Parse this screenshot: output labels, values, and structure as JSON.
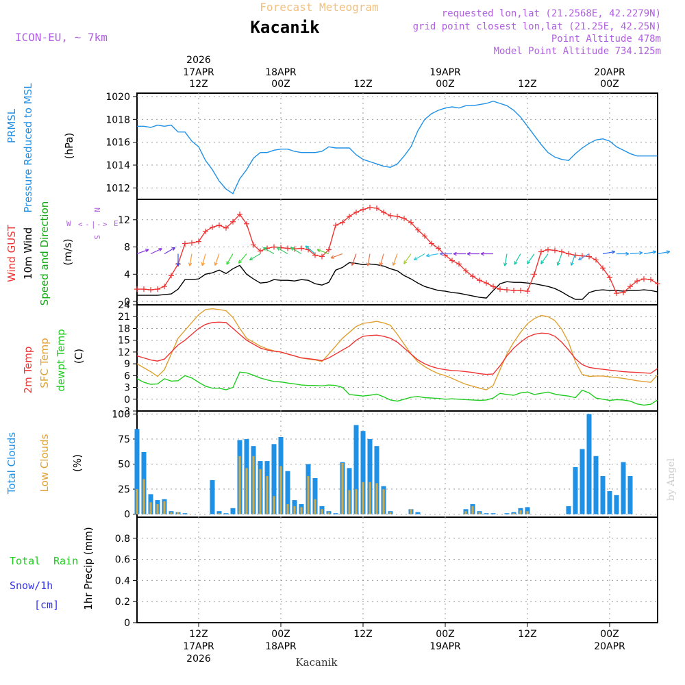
{
  "header": {
    "subtitle": "Forecast Meteogram",
    "title": "Kacanik",
    "model": "ICON-EU, ~ 7km",
    "requested": "requested lon,lat (21.2568E, 42.2279N)",
    "grid_point": "grid point closest lon,lat (21.25E, 42.25N)",
    "point_altitude": "Point Altitude 478m",
    "model_altitude": "Model Point Altitude 734.125m"
  },
  "top_time_labels": [
    {
      "line1": "2026",
      "line2": "17APR",
      "line3": "12Z"
    },
    {
      "line1": "",
      "line2": "18APR",
      "line3": "00Z"
    },
    {
      "line1": "",
      "line2": "",
      "line3": "12Z"
    },
    {
      "line1": "",
      "line2": "19APR",
      "line3": "00Z"
    },
    {
      "line1": "",
      "line2": "",
      "line3": "12Z"
    },
    {
      "line1": "",
      "line2": "20APR",
      "line3": "00Z"
    }
  ],
  "bottom_time_labels": [
    {
      "line1": "12Z",
      "line2": "17APR",
      "line3": "2026"
    },
    {
      "line1": "00Z",
      "line2": "18APR",
      "line3": ""
    },
    {
      "line1": "12Z",
      "line2": "",
      "line3": ""
    },
    {
      "line1": "00Z",
      "line2": "19APR",
      "line3": ""
    },
    {
      "line1": "12Z",
      "line2": "",
      "line3": ""
    },
    {
      "line1": "00Z",
      "line2": "20APR",
      "line3": ""
    }
  ],
  "footer": {
    "location": "Kacanik",
    "credit": "by Angel"
  },
  "colors": {
    "pressure": "#1e90e6",
    "gust": "#ee3333",
    "wind": "#000000",
    "wind_label": "#11aa11",
    "temp2m": "#ee3333",
    "sfc": "#e0a030",
    "dewpt": "#22cc22",
    "total_clouds": "#1e90e6",
    "low_clouds": "#d8a840",
    "rain": "#22cc22",
    "snow": "#3333ee",
    "header_purple": "#b060e0",
    "header_subtitle": "#f0c080"
  },
  "compass": {
    "n": "N",
    "s": "S",
    "e": "E",
    "w": "W"
  },
  "chart_data": [
    {
      "type": "line",
      "id": "pressure",
      "title": "PRMSL Pressure Reduced to MSL",
      "ylabel_lines": [
        "PRMSL",
        "Pressure Reduced to MSL"
      ],
      "unit": "(hPa)",
      "ylim": [
        1011,
        1020.3
      ],
      "yticks": [
        1012,
        1014,
        1016,
        1018,
        1020
      ],
      "x_hours": [
        0,
        1,
        2,
        3,
        4,
        5,
        6,
        7,
        8,
        9,
        10,
        11,
        12,
        13,
        14,
        15,
        16,
        17,
        18,
        19,
        20,
        21,
        22,
        23,
        24,
        25,
        26,
        27,
        28,
        29,
        30,
        31,
        32,
        33,
        34,
        35,
        36,
        37,
        38,
        39,
        40,
        41,
        42,
        43,
        44,
        45,
        46,
        47,
        48,
        49,
        50,
        51,
        52,
        53,
        54,
        55,
        56,
        57,
        58,
        59,
        60,
        61,
        62,
        63,
        64,
        65,
        66,
        67,
        68,
        69,
        70,
        71,
        72,
        73,
        74,
        75,
        76
      ],
      "series": [
        {
          "name": "PRMSL",
          "values": [
            1017.4,
            1017.4,
            1017.3,
            1017.5,
            1017.4,
            1017.5,
            1016.9,
            1016.9,
            1016.1,
            1015.6,
            1014.4,
            1013.6,
            1012.6,
            1011.9,
            1011.5,
            1012.8,
            1013.6,
            1014.6,
            1015.1,
            1015.1,
            1015.3,
            1015.4,
            1015.4,
            1015.2,
            1015.1,
            1015.1,
            1015.1,
            1015.2,
            1015.6,
            1015.5,
            1015.5,
            1015.5,
            1014.9,
            1014.5,
            1014.3,
            1014.1,
            1013.9,
            1013.8,
            1014.1,
            1014.8,
            1015.6,
            1017.0,
            1018.0,
            1018.5,
            1018.8,
            1019.0,
            1019.1,
            1019.0,
            1019.2,
            1019.2,
            1019.3,
            1019.4,
            1019.6,
            1019.4,
            1019.2,
            1018.8,
            1018.2,
            1017.4,
            1016.6,
            1015.8,
            1015.1,
            1014.7,
            1014.5,
            1014.4,
            1015.0,
            1015.5,
            1015.9,
            1016.2,
            1016.3,
            1016.1,
            1015.6,
            1015.3,
            1015.0,
            1014.8,
            1014.8,
            1014.8,
            1014.8
          ]
        }
      ]
    },
    {
      "type": "line",
      "id": "wind",
      "ylabel_lines": [
        "Wind GUST",
        "10m Wind",
        "Speed and Direction"
      ],
      "unit": "(m/s)",
      "ylim": [
        -0.5,
        15
      ],
      "yticks": [
        0,
        4,
        8,
        12
      ],
      "series": [
        {
          "name": "Wind GUST",
          "values": [
            1.8,
            1.8,
            1.7,
            1.8,
            2.2,
            3.8,
            5.5,
            8.5,
            8.6,
            8.8,
            10.3,
            10.9,
            11.2,
            10.8,
            11.7,
            12.8,
            11.4,
            8.3,
            7.4,
            7.8,
            8.0,
            7.9,
            7.8,
            7.7,
            7.8,
            7.6,
            6.8,
            6.6,
            7.6,
            11.2,
            11.6,
            12.5,
            13.1,
            13.5,
            13.8,
            13.7,
            13.1,
            12.6,
            12.5,
            12.2,
            11.6,
            10.5,
            9.6,
            8.5,
            7.8,
            6.8,
            6.0,
            5.5,
            4.5,
            3.7,
            3.1,
            2.7,
            2.2,
            1.8,
            1.7,
            1.6,
            1.6,
            1.5,
            4.0,
            7.3,
            7.6,
            7.5,
            7.3,
            7.0,
            6.8,
            6.7,
            6.6,
            6.1,
            4.9,
            3.5,
            1.2,
            1.3,
            2.2,
            3.0,
            3.3,
            3.2,
            2.6
          ]
        },
        {
          "name": "10m Wind",
          "values": [
            0.9,
            0.9,
            0.9,
            0.9,
            1.0,
            1.1,
            1.8,
            3.2,
            3.2,
            3.3,
            4.0,
            4.2,
            4.6,
            4.1,
            4.8,
            5.3,
            4.0,
            3.3,
            2.7,
            2.8,
            3.2,
            3.1,
            3.1,
            3.0,
            3.2,
            3.1,
            2.6,
            2.4,
            2.8,
            4.6,
            5.0,
            5.7,
            5.6,
            5.4,
            5.5,
            5.4,
            5.2,
            4.8,
            4.5,
            3.8,
            3.3,
            2.7,
            2.2,
            1.9,
            1.6,
            1.5,
            1.3,
            1.2,
            1.0,
            0.8,
            0.6,
            0.5,
            1.6,
            2.6,
            2.9,
            2.8,
            2.8,
            2.7,
            2.6,
            2.4,
            2.2,
            1.9,
            1.4,
            0.8,
            0.3,
            0.3,
            1.3,
            1.6,
            1.7,
            1.6,
            1.6,
            1.5,
            1.6,
            1.6,
            1.7,
            1.6,
            1.4
          ]
        }
      ],
      "arrow_hours": [
        0,
        2,
        4,
        6,
        8,
        10,
        12,
        14,
        16,
        18,
        20,
        22,
        24,
        26,
        28,
        30,
        32,
        34,
        36,
        38,
        40,
        42,
        44,
        46,
        48,
        50,
        52,
        54,
        56,
        58,
        60,
        62,
        64,
        66,
        68,
        70,
        72,
        74,
        76
      ],
      "arrow_dirs_deg": [
        70,
        65,
        60,
        180,
        190,
        195,
        200,
        210,
        220,
        240,
        300,
        300,
        300,
        310,
        290,
        250,
        200,
        190,
        195,
        200,
        215,
        240,
        260,
        270,
        270,
        270,
        270,
        190,
        210,
        215,
        215,
        200,
        200,
        240,
        80,
        90,
        85,
        80,
        80
      ],
      "arrow_colors": [
        "#8833dd",
        "#8833dd",
        "#6633dd",
        "#3355dd",
        "#ff9933",
        "#ff9933",
        "#ff9933",
        "#33dd33",
        "#33dd33",
        "#33cc66",
        "#33cc66",
        "#33cc66",
        "#33cc66",
        "#11cccc",
        "#55cc33",
        "#ee7744",
        "#ee5544",
        "#ee7744",
        "#ee7744",
        "#ee9944",
        "#aacc33",
        "#33cccc",
        "#33bbee",
        "#6677ee",
        "#8833dd",
        "#8833dd",
        "#8833dd",
        "#11ccaa",
        "#11ccaa",
        "#11ccaa",
        "#11ccaa",
        "#11ccaa",
        "#11bbcc",
        "#4499ee",
        "#3366ee",
        "#2299ee",
        "#2299ee",
        "#2299ee",
        "#2299ee"
      ]
    },
    {
      "type": "line",
      "id": "temperature",
      "ylabel_lines": [
        "2m Temp",
        "SFC Temp",
        "dewpt Temp"
      ],
      "unit": "(C)",
      "ylim": [
        -3,
        24
      ],
      "yticks": [
        -3,
        0,
        3,
        6,
        9,
        12,
        15,
        18,
        21,
        24
      ],
      "series": [
        {
          "name": "2m Temp",
          "values": [
            11.0,
            10.5,
            10.0,
            9.7,
            10.2,
            12.0,
            13.8,
            15.0,
            16.5,
            18.0,
            19.0,
            19.5,
            19.6,
            19.5,
            18.0,
            16.5,
            15.0,
            14.0,
            13.0,
            12.5,
            12.2,
            12.0,
            11.5,
            11.0,
            10.5,
            10.3,
            10.1,
            9.8,
            10.5,
            11.5,
            12.5,
            13.5,
            15.0,
            16.0,
            16.2,
            16.3,
            16.0,
            15.5,
            14.5,
            13.0,
            11.5,
            10.0,
            9.0,
            8.3,
            7.8,
            7.5,
            7.3,
            7.2,
            7.0,
            6.8,
            6.5,
            6.3,
            6.4,
            8.5,
            11.0,
            13.0,
            14.5,
            15.8,
            16.5,
            16.8,
            16.7,
            16.0,
            14.5,
            12.5,
            10.3,
            8.8,
            8.1,
            7.8,
            7.6,
            7.4,
            7.2,
            7.0,
            6.9,
            6.8,
            6.7,
            6.6,
            7.8
          ]
        },
        {
          "name": "SFC Temp",
          "values": [
            9.0,
            8.0,
            7.0,
            5.8,
            7.5,
            11.5,
            15.5,
            17.5,
            19.5,
            21.5,
            22.8,
            23.0,
            22.8,
            22.5,
            20.8,
            18.0,
            15.5,
            14.5,
            13.5,
            12.8,
            12.3,
            12.0,
            11.5,
            11.0,
            10.5,
            10.2,
            10.0,
            9.6,
            11.5,
            13.5,
            15.5,
            17.0,
            18.5,
            19.3,
            19.5,
            19.8,
            19.4,
            18.8,
            16.5,
            14.0,
            11.5,
            9.5,
            8.3,
            7.3,
            6.5,
            6.0,
            5.3,
            4.5,
            3.8,
            3.3,
            2.8,
            2.4,
            3.5,
            7.5,
            11.5,
            14.5,
            17.0,
            19.2,
            20.5,
            21.3,
            21.0,
            20.0,
            17.8,
            14.5,
            9.5,
            6.3,
            5.8,
            5.9,
            5.9,
            5.7,
            5.5,
            5.3,
            5.0,
            4.7,
            4.5,
            4.3,
            6.2
          ]
        },
        {
          "name": "dewpt Temp",
          "values": [
            5.2,
            4.3,
            3.8,
            3.9,
            5.2,
            4.6,
            4.7,
            6.0,
            5.4,
            4.3,
            3.3,
            2.8,
            2.8,
            2.4,
            3.0,
            6.9,
            6.7,
            6.1,
            5.4,
            4.9,
            4.5,
            4.4,
            4.1,
            3.9,
            3.6,
            3.5,
            3.5,
            3.4,
            3.6,
            3.5,
            3.0,
            1.2,
            1.0,
            0.8,
            1.0,
            1.3,
            0.6,
            -0.2,
            -0.5,
            0.0,
            0.5,
            0.7,
            0.4,
            0.3,
            0.2,
            0.0,
            0.1,
            0.0,
            -0.1,
            -0.2,
            -0.3,
            -0.2,
            0.3,
            1.5,
            1.2,
            1.0,
            1.6,
            1.8,
            1.2,
            1.5,
            1.8,
            1.3,
            1.0,
            0.8,
            0.4,
            2.3,
            1.6,
            0.3,
            0.0,
            -0.3,
            -0.1,
            -0.2,
            -0.5,
            -1.2,
            -1.5,
            -1.3,
            -0.2
          ]
        }
      ]
    },
    {
      "type": "bar",
      "id": "clouds",
      "ylabel_lines": [
        "Total Clouds",
        "Low Clouds"
      ],
      "unit": "(%)",
      "ylim": [
        -3,
        103
      ],
      "yticks": [
        0,
        25,
        50,
        75,
        100
      ],
      "series": [
        {
          "name": "Total Clouds",
          "values": [
            85,
            62,
            20,
            14,
            15,
            3,
            2,
            1,
            0,
            0,
            0,
            34,
            3,
            1,
            6,
            74,
            75,
            68,
            53,
            53,
            70,
            77,
            43,
            14,
            10,
            50,
            36,
            8,
            3,
            1,
            52,
            46,
            89,
            83,
            75,
            68,
            28,
            3,
            0,
            0,
            5,
            2,
            0,
            0,
            0,
            0,
            0,
            0,
            5,
            10,
            3,
            1,
            1,
            0,
            1,
            2,
            6,
            7,
            0,
            0,
            0,
            0,
            0,
            8,
            47,
            65,
            100,
            58,
            38,
            23,
            19,
            52,
            38,
            0,
            0,
            0,
            0
          ]
        },
        {
          "name": "Low Clouds",
          "values": [
            25,
            35,
            12,
            10,
            13,
            2,
            2,
            0,
            0,
            0,
            0,
            0,
            1,
            0,
            0,
            58,
            46,
            58,
            45,
            38,
            18,
            48,
            10,
            8,
            7,
            38,
            15,
            5,
            2,
            0,
            51,
            24,
            25,
            32,
            32,
            31,
            25,
            2,
            0,
            0,
            5,
            0,
            0,
            0,
            0,
            0,
            0,
            0,
            3,
            8,
            2,
            0,
            0,
            0,
            0,
            1,
            4,
            3,
            0,
            0,
            0,
            0,
            0,
            0,
            0,
            0,
            0,
            0,
            0,
            0,
            0,
            0,
            0,
            0,
            0,
            0,
            0
          ]
        }
      ]
    },
    {
      "type": "line",
      "id": "precip",
      "ylabel_lines": [
        "1hr Precip (mm)"
      ],
      "side_labels": {
        "rain_total": "Total",
        "rain": "Rain",
        "snow": "Snow/1h",
        "snow_unit": "[cm]"
      },
      "ylim": [
        0,
        1.0
      ],
      "yticks": [
        0,
        0.2,
        0.4,
        0.6,
        0.8
      ],
      "ytick_labels": [
        "0",
        "0.2",
        "0.4",
        "0.6",
        "0.8"
      ],
      "series": [
        {
          "name": "Total Rain",
          "values": [
            0,
            0,
            0,
            0,
            0,
            0,
            0,
            0,
            0,
            0,
            0,
            0,
            0,
            0,
            0,
            0,
            0,
            0,
            0,
            0,
            0,
            0,
            0,
            0,
            0,
            0,
            0,
            0,
            0,
            0,
            0,
            0,
            0,
            0,
            0,
            0,
            0,
            0,
            0,
            0,
            0,
            0,
            0,
            0,
            0,
            0,
            0,
            0,
            0,
            0,
            0,
            0,
            0,
            0,
            0,
            0,
            0,
            0,
            0,
            0,
            0,
            0,
            0,
            0,
            0,
            0,
            0,
            0,
            0,
            0,
            0,
            0,
            0,
            0,
            0,
            0,
            0
          ]
        }
      ]
    }
  ]
}
